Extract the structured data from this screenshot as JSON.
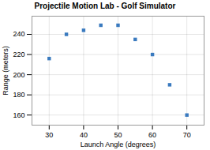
{
  "chart_data": {
    "type": "scatter",
    "title": "Projectile Motion Lab - Golf Simulator",
    "xlabel": "Launch Angle (degrees)",
    "ylabel": "Range (meters)",
    "x": [
      30,
      35,
      40,
      45,
      50,
      55,
      60,
      65,
      70
    ],
    "values": [
      216,
      240,
      244,
      249,
      249,
      235,
      220,
      190,
      160
    ],
    "color": "#3a7abf",
    "marker": "square",
    "xlim": [
      25,
      75
    ],
    "ylim": [
      150,
      258
    ],
    "xticks": [
      30,
      40,
      50,
      60,
      70
    ],
    "yticks": [
      160,
      180,
      200,
      220,
      240
    ],
    "grid": true
  }
}
